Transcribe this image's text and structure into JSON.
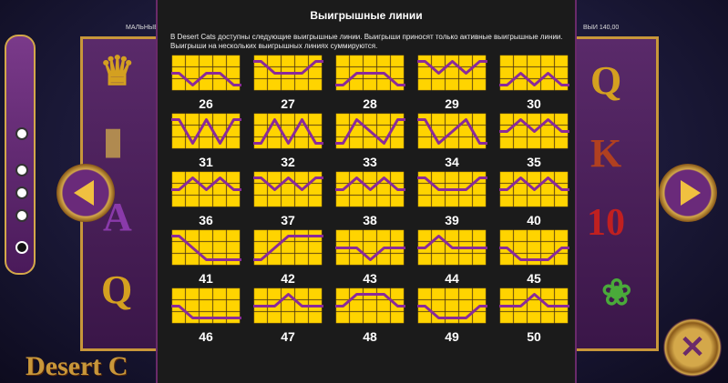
{
  "panel": {
    "title": "Выигрышные линии",
    "description": [
      "В Desert Cats доступны следующие выигрышные линии. Выигрыши приносят только активные выигрышные линии.",
      "Выигрыши на нескольких выигрышных линиях суммируются."
    ]
  },
  "marquee_left": "МАЛЬНЫЕ ВЫ",
  "marquee_right": "ВЫИ 140,00",
  "logo_text": "Desert C",
  "reel_left_symbols": [
    "pharaoh",
    "tablet",
    "A",
    "Q"
  ],
  "reel_right_symbols": [
    "Q",
    "K",
    "10",
    "lotus"
  ],
  "level_indicator": {
    "count": 5,
    "active_index": 4
  },
  "colors": {
    "cell": "#ffd400",
    "cell_border": "#d4a000",
    "line": "#8a2a9a",
    "panel_bg": "#1b1b1b",
    "accent": "#c8973a"
  },
  "icons": {
    "prev": "chevron-left-icon",
    "next": "chevron-right-icon",
    "close": "close-icon"
  },
  "paylines": [
    {
      "number": "26",
      "rows": [
        1,
        2,
        1,
        1,
        2
      ]
    },
    {
      "number": "27",
      "rows": [
        0,
        1,
        1,
        1,
        0
      ]
    },
    {
      "number": "28",
      "rows": [
        2,
        1,
        1,
        1,
        2
      ]
    },
    {
      "number": "29",
      "rows": [
        0,
        1,
        0,
        1,
        0
      ]
    },
    {
      "number": "30",
      "rows": [
        2,
        1,
        2,
        1,
        2
      ]
    },
    {
      "number": "31",
      "rows": [
        0,
        2,
        0,
        2,
        0
      ]
    },
    {
      "number": "32",
      "rows": [
        2,
        0,
        2,
        0,
        2
      ]
    },
    {
      "number": "33",
      "rows": [
        2,
        0,
        1,
        2,
        0
      ]
    },
    {
      "number": "34",
      "rows": [
        0,
        2,
        1,
        0,
        2
      ]
    },
    {
      "number": "35",
      "rows": [
        1,
        0,
        1,
        0,
        1
      ]
    },
    {
      "number": "36",
      "rows": [
        1,
        0,
        1,
        0,
        1
      ]
    },
    {
      "number": "37",
      "rows": [
        0,
        1,
        0,
        1,
        0
      ]
    },
    {
      "number": "38",
      "rows": [
        1,
        0,
        1,
        0,
        1
      ]
    },
    {
      "number": "39",
      "rows": [
        0,
        1,
        1,
        1,
        0
      ]
    },
    {
      "number": "40",
      "rows": [
        1,
        0,
        1,
        0,
        1
      ]
    },
    {
      "number": "41",
      "rows": [
        0,
        1,
        2,
        2,
        2
      ]
    },
    {
      "number": "42",
      "rows": [
        2,
        1,
        0,
        0,
        0
      ]
    },
    {
      "number": "43",
      "rows": [
        1,
        1,
        2,
        1,
        1
      ]
    },
    {
      "number": "44",
      "rows": [
        1,
        0,
        1,
        1,
        1
      ]
    },
    {
      "number": "45",
      "rows": [
        1,
        2,
        2,
        2,
        1
      ]
    },
    {
      "number": "46",
      "rows": [
        1,
        2,
        2,
        2,
        2
      ]
    },
    {
      "number": "47",
      "rows": [
        1,
        1,
        0,
        1,
        1
      ]
    },
    {
      "number": "48",
      "rows": [
        1,
        0,
        0,
        0,
        1
      ]
    },
    {
      "number": "49",
      "rows": [
        1,
        2,
        2,
        2,
        1
      ]
    },
    {
      "number": "50",
      "rows": [
        1,
        1,
        0,
        1,
        1
      ]
    }
  ]
}
